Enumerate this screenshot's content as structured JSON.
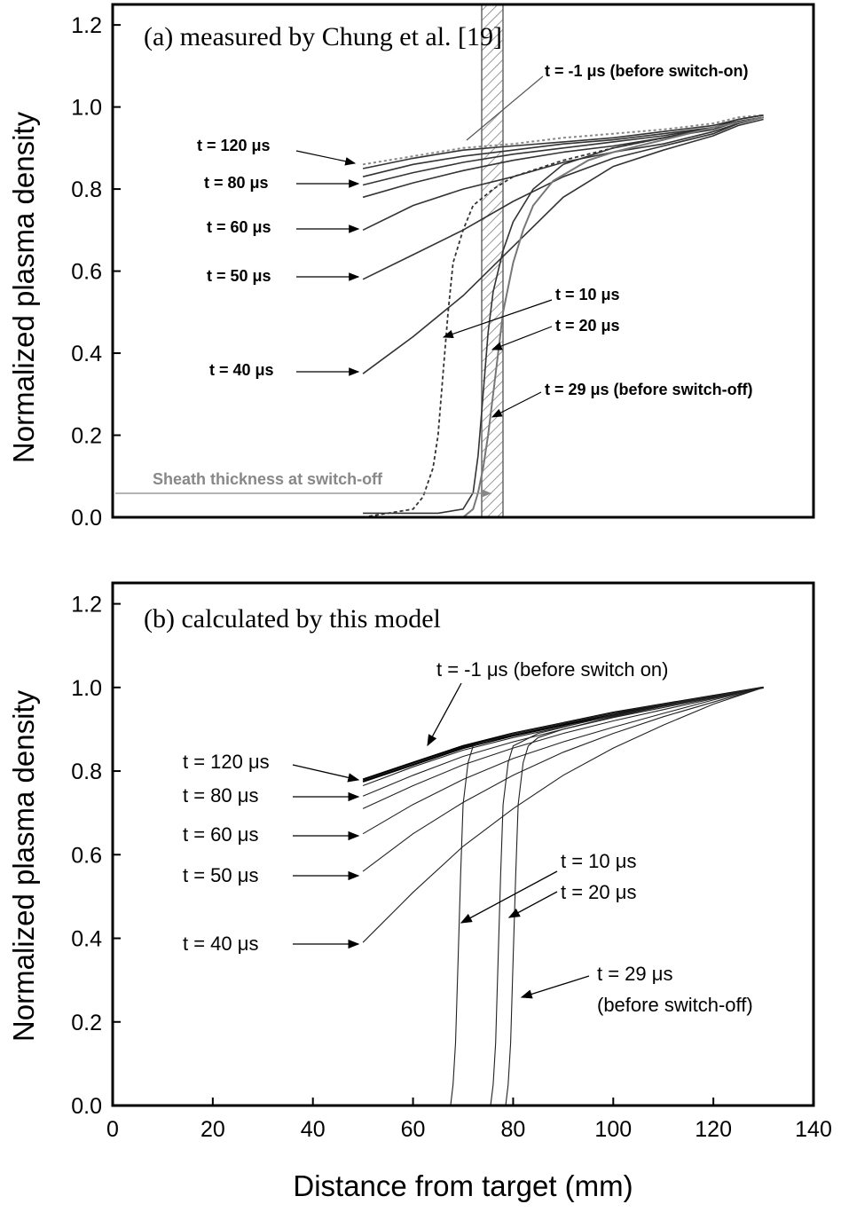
{
  "chart_data": [
    {
      "type": "line",
      "title": "(a) measured by Chung et al. [19]",
      "xlabel": "",
      "ylabel": "Normalized plasma density",
      "xlim": [
        50,
        130
      ],
      "ylim": [
        0,
        1.25
      ],
      "yticks": [
        "0.0",
        "0.2",
        "0.4",
        "0.6",
        "0.8",
        "1.0",
        "1.2"
      ],
      "xticks": [],
      "sheath_label": "Sheath thickness at switch-off",
      "series": [
        {
          "name": "t = -1 μs (before switch-on)",
          "x": [
            50,
            60,
            70,
            80,
            90,
            100,
            110,
            120,
            125,
            130
          ],
          "y": [
            0.86,
            0.88,
            0.9,
            0.91,
            0.925,
            0.935,
            0.945,
            0.96,
            0.975,
            0.98
          ]
        },
        {
          "name": "t = 120 μs",
          "x": [
            50,
            60,
            70,
            80,
            90,
            100,
            110,
            120,
            125,
            130
          ],
          "y": [
            0.85,
            0.875,
            0.895,
            0.905,
            0.915,
            0.925,
            0.94,
            0.955,
            0.97,
            0.98
          ]
        },
        {
          "name": "",
          "x": [
            50,
            60,
            70,
            80,
            90,
            100,
            110,
            120,
            125,
            130
          ],
          "y": [
            0.83,
            0.86,
            0.88,
            0.895,
            0.91,
            0.92,
            0.935,
            0.95,
            0.97,
            0.98
          ]
        },
        {
          "name": "t = 80 μs",
          "x": [
            50,
            60,
            70,
            80,
            90,
            100,
            110,
            120,
            125,
            130
          ],
          "y": [
            0.81,
            0.84,
            0.865,
            0.885,
            0.9,
            0.915,
            0.93,
            0.95,
            0.965,
            0.975
          ]
        },
        {
          "name": "",
          "x": [
            50,
            60,
            70,
            80,
            90,
            100,
            110,
            120,
            125,
            130
          ],
          "y": [
            0.78,
            0.815,
            0.845,
            0.87,
            0.89,
            0.905,
            0.925,
            0.945,
            0.965,
            0.975
          ]
        },
        {
          "name": "t = 60 μs",
          "x": [
            50,
            60,
            70,
            80,
            90,
            100,
            110,
            120,
            125,
            130
          ],
          "y": [
            0.7,
            0.76,
            0.8,
            0.83,
            0.865,
            0.89,
            0.91,
            0.94,
            0.96,
            0.975
          ]
        },
        {
          "name": "t = 50 μs",
          "x": [
            50,
            60,
            70,
            80,
            90,
            100,
            110,
            120,
            125,
            130
          ],
          "y": [
            0.58,
            0.64,
            0.7,
            0.77,
            0.83,
            0.875,
            0.905,
            0.935,
            0.96,
            0.975
          ]
        },
        {
          "name": "t = 40 μs",
          "x": [
            50,
            60,
            70,
            80,
            90,
            100,
            110,
            120,
            125,
            130
          ],
          "y": [
            0.35,
            0.44,
            0.54,
            0.66,
            0.78,
            0.855,
            0.895,
            0.93,
            0.955,
            0.97
          ]
        },
        {
          "name": "t = 10 μs",
          "x": [
            50,
            60,
            62,
            64,
            65,
            66,
            67,
            68,
            70,
            72,
            76,
            80,
            90,
            100,
            110,
            120,
            130
          ],
          "y": [
            0.0,
            0.02,
            0.05,
            0.12,
            0.2,
            0.35,
            0.5,
            0.62,
            0.7,
            0.76,
            0.8,
            0.83,
            0.87,
            0.9,
            0.925,
            0.95,
            0.975
          ]
        },
        {
          "name": "t = 20 μs",
          "x": [
            50,
            65,
            70,
            72,
            73,
            74,
            75,
            76,
            78,
            80,
            84,
            90,
            100,
            110,
            120,
            130
          ],
          "y": [
            0.01,
            0.01,
            0.02,
            0.06,
            0.15,
            0.3,
            0.45,
            0.55,
            0.65,
            0.72,
            0.8,
            0.86,
            0.9,
            0.925,
            0.95,
            0.975
          ]
        },
        {
          "name": "t = 29 μs (before switch-off)",
          "x": [
            50,
            70,
            72,
            73,
            74,
            75,
            76,
            77,
            78,
            80,
            82,
            84,
            88,
            95,
            100,
            110,
            120,
            130
          ],
          "y": [
            0.0,
            0.0,
            0.02,
            0.06,
            0.12,
            0.2,
            0.3,
            0.4,
            0.5,
            0.62,
            0.7,
            0.76,
            0.82,
            0.87,
            0.89,
            0.92,
            0.95,
            0.975
          ]
        }
      ]
    },
    {
      "type": "line",
      "title": "(b) calculated by this model",
      "xlabel": "Distance from target (mm)",
      "ylabel": "Normalized plasma density",
      "xlim": [
        0,
        140
      ],
      "ylim": [
        0,
        1.25
      ],
      "yticks": [
        "0.0",
        "0.2",
        "0.4",
        "0.6",
        "0.8",
        "1.0",
        "1.2"
      ],
      "xticks": [
        "0",
        "20",
        "40",
        "60",
        "80",
        "100",
        "120",
        "140"
      ],
      "series": [
        {
          "name": "t = -1 μs (before switch on)",
          "x": [
            50,
            60,
            70,
            80,
            90,
            100,
            110,
            120,
            130
          ],
          "y": [
            0.78,
            0.82,
            0.86,
            0.89,
            0.915,
            0.94,
            0.96,
            0.98,
            1.0
          ]
        },
        {
          "name": "t = 120 μs",
          "x": [
            50,
            60,
            70,
            80,
            90,
            100,
            110,
            120,
            130
          ],
          "y": [
            0.775,
            0.815,
            0.855,
            0.885,
            0.91,
            0.935,
            0.958,
            0.978,
            1.0
          ]
        },
        {
          "name": "",
          "x": [
            50,
            60,
            70,
            80,
            90,
            100,
            110,
            120,
            130
          ],
          "y": [
            0.765,
            0.81,
            0.85,
            0.88,
            0.906,
            0.932,
            0.955,
            0.977,
            1.0
          ]
        },
        {
          "name": "t = 80 μs",
          "x": [
            50,
            60,
            70,
            80,
            90,
            100,
            110,
            120,
            130
          ],
          "y": [
            0.74,
            0.79,
            0.835,
            0.87,
            0.9,
            0.928,
            0.952,
            0.975,
            1.0
          ]
        },
        {
          "name": "",
          "x": [
            50,
            60,
            70,
            80,
            90,
            100,
            110,
            120,
            130
          ],
          "y": [
            0.71,
            0.765,
            0.815,
            0.855,
            0.89,
            0.92,
            0.947,
            0.973,
            1.0
          ]
        },
        {
          "name": "t = 60 μs",
          "x": [
            50,
            60,
            70,
            80,
            90,
            100,
            110,
            120,
            130
          ],
          "y": [
            0.65,
            0.72,
            0.78,
            0.83,
            0.87,
            0.905,
            0.938,
            0.97,
            1.0
          ]
        },
        {
          "name": "t = 50 μs",
          "x": [
            50,
            60,
            70,
            80,
            90,
            100,
            110,
            120,
            130
          ],
          "y": [
            0.56,
            0.65,
            0.725,
            0.79,
            0.845,
            0.89,
            0.93,
            0.965,
            1.0
          ]
        },
        {
          "name": "t = 40 μs",
          "x": [
            50,
            60,
            70,
            80,
            90,
            100,
            110,
            120,
            130
          ],
          "y": [
            0.39,
            0.51,
            0.62,
            0.71,
            0.79,
            0.855,
            0.91,
            0.96,
            1.0
          ]
        },
        {
          "name": "t = 10 μs",
          "x": [
            67.5,
            68,
            68.5,
            69,
            69.5,
            70,
            71,
            72,
            80,
            90,
            100,
            110,
            120,
            130
          ],
          "y": [
            0.0,
            0.05,
            0.15,
            0.35,
            0.55,
            0.72,
            0.82,
            0.86,
            0.89,
            0.915,
            0.94,
            0.96,
            0.98,
            1.0
          ]
        },
        {
          "name": "t = 20 μs",
          "x": [
            75.5,
            76,
            76.5,
            77,
            77.5,
            78,
            79,
            80,
            85,
            90,
            100,
            110,
            120,
            130
          ],
          "y": [
            0.0,
            0.05,
            0.15,
            0.35,
            0.55,
            0.72,
            0.82,
            0.86,
            0.89,
            0.905,
            0.935,
            0.958,
            0.978,
            1.0
          ]
        },
        {
          "name": "t = 29 μs\n(before switch-off)",
          "x": [
            78.5,
            79,
            79.5,
            80,
            80.5,
            81,
            82,
            83,
            85,
            90,
            100,
            110,
            120,
            130
          ],
          "y": [
            0.0,
            0.05,
            0.15,
            0.35,
            0.55,
            0.72,
            0.82,
            0.86,
            0.88,
            0.9,
            0.93,
            0.955,
            0.977,
            1.0
          ]
        }
      ]
    }
  ],
  "annotations_a": [
    {
      "text": "t = -1 μs (before switch-on)"
    },
    {
      "text": "t = 120 μs"
    },
    {
      "text": "t = 80 μs"
    },
    {
      "text": "t = 60 μs"
    },
    {
      "text": "t = 50 μs"
    },
    {
      "text": "t = 40 μs"
    },
    {
      "text": "t = 10 μs"
    },
    {
      "text": "t = 20 μs"
    },
    {
      "text": "t = 29 μs (before switch-off)"
    }
  ],
  "annotations_b": [
    {
      "text": "t = -1 μs (before switch on)"
    },
    {
      "text": "t = 120 μs"
    },
    {
      "text": "t = 80 μs"
    },
    {
      "text": "t = 60 μs"
    },
    {
      "text": "t = 50 μs"
    },
    {
      "text": "t = 40 μs"
    },
    {
      "text": "t = 10 μs"
    },
    {
      "text": "t = 20 μs"
    },
    {
      "text": "t = 29 μs"
    },
    {
      "text": "(before switch-off)"
    }
  ]
}
